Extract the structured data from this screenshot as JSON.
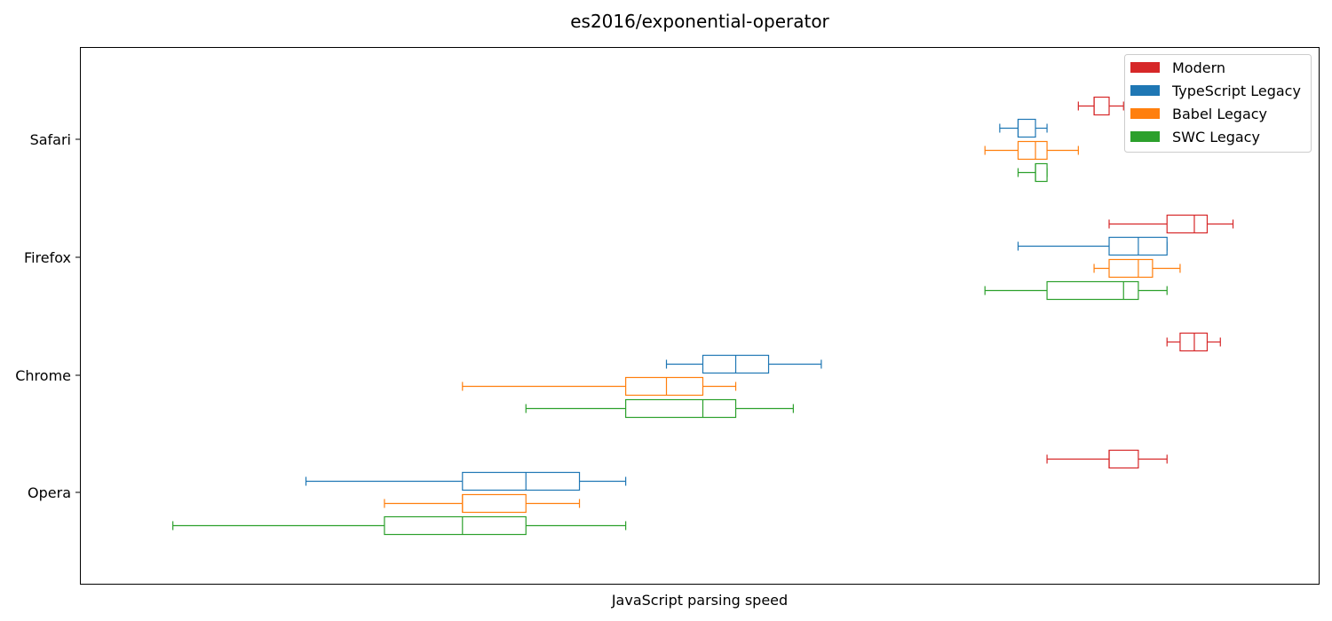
{
  "chart_data": {
    "type": "boxplot",
    "title": "es2016/exponential-operator",
    "xlabel": "JavaScript parsing speed",
    "ylabel": "",
    "x_ticks_shown": false,
    "grid": false,
    "legend_position": "top-right",
    "categories": [
      "Opera",
      "Chrome",
      "Firefox",
      "Safari"
    ],
    "series": [
      {
        "name": "Modern",
        "color": "#d62728",
        "boxes": {
          "Safari": {
            "whislo": 29.7,
            "q1": 31.1,
            "med": 31.1,
            "q3": 32.5,
            "whishi": 33.9
          },
          "Firefox": {
            "whislo": 32.5,
            "q1": 38.5,
            "med": 41.7,
            "q3": 43.3,
            "whishi": 46.7
          },
          "Chrome": {
            "whislo": 38.5,
            "q1": 40.0,
            "med": 41.7,
            "q3": 43.3,
            "whishi": 45.0
          },
          "Opera": {
            "whislo": 27.1,
            "q1": 32.5,
            "med": 32.5,
            "q3": 35.4,
            "whishi": 38.5
          }
        }
      },
      {
        "name": "TypeScript Legacy",
        "color": "#1f77b4",
        "boxes": {
          "Safari": {
            "whislo": 23.6,
            "q1": 24.9,
            "med": 24.9,
            "q3": 26.2,
            "whishi": 27.1
          },
          "Firefox": {
            "whislo": 24.9,
            "q1": 32.5,
            "med": 35.4,
            "q3": 38.5,
            "whishi": 38.5
          },
          "Chrome": {
            "whislo": 8.9,
            "q1": 9.9,
            "med": 10.9,
            "q3": 12.0,
            "whishi": 14.0
          },
          "Opera": {
            "whislo": 3.1,
            "q1": 4.9,
            "med": 5.9,
            "q3": 6.9,
            "whishi": 7.9
          }
        }
      },
      {
        "name": "Babel Legacy",
        "color": "#ff7f0e",
        "boxes": {
          "Safari": {
            "whislo": 22.6,
            "q1": 24.9,
            "med": 26.2,
            "q3": 27.1,
            "whishi": 29.7
          },
          "Firefox": {
            "whislo": 31.1,
            "q1": 32.5,
            "med": 35.4,
            "q3": 36.9,
            "whishi": 40.0
          },
          "Chrome": {
            "whislo": 4.9,
            "q1": 7.9,
            "med": 8.9,
            "q3": 9.9,
            "whishi": 10.9
          },
          "Opera": {
            "whislo": 3.9,
            "q1": 4.9,
            "med": 4.9,
            "q3": 5.9,
            "whishi": 6.9
          }
        }
      },
      {
        "name": "SWC Legacy",
        "color": "#2ca02c",
        "boxes": {
          "Safari": {
            "whislo": 24.9,
            "q1": 26.2,
            "med": 26.2,
            "q3": 27.1,
            "whishi": 27.1
          },
          "Firefox": {
            "whislo": 22.6,
            "q1": 27.1,
            "med": 33.9,
            "q3": 35.4,
            "whishi": 38.5
          },
          "Chrome": {
            "whislo": 5.9,
            "q1": 7.9,
            "med": 9.9,
            "q3": 10.9,
            "whishi": 12.9
          },
          "Opera": {
            "whislo": 2.1,
            "q1": 3.9,
            "med": 4.9,
            "q3": 5.9,
            "whishi": 7.9
          }
        }
      }
    ]
  }
}
